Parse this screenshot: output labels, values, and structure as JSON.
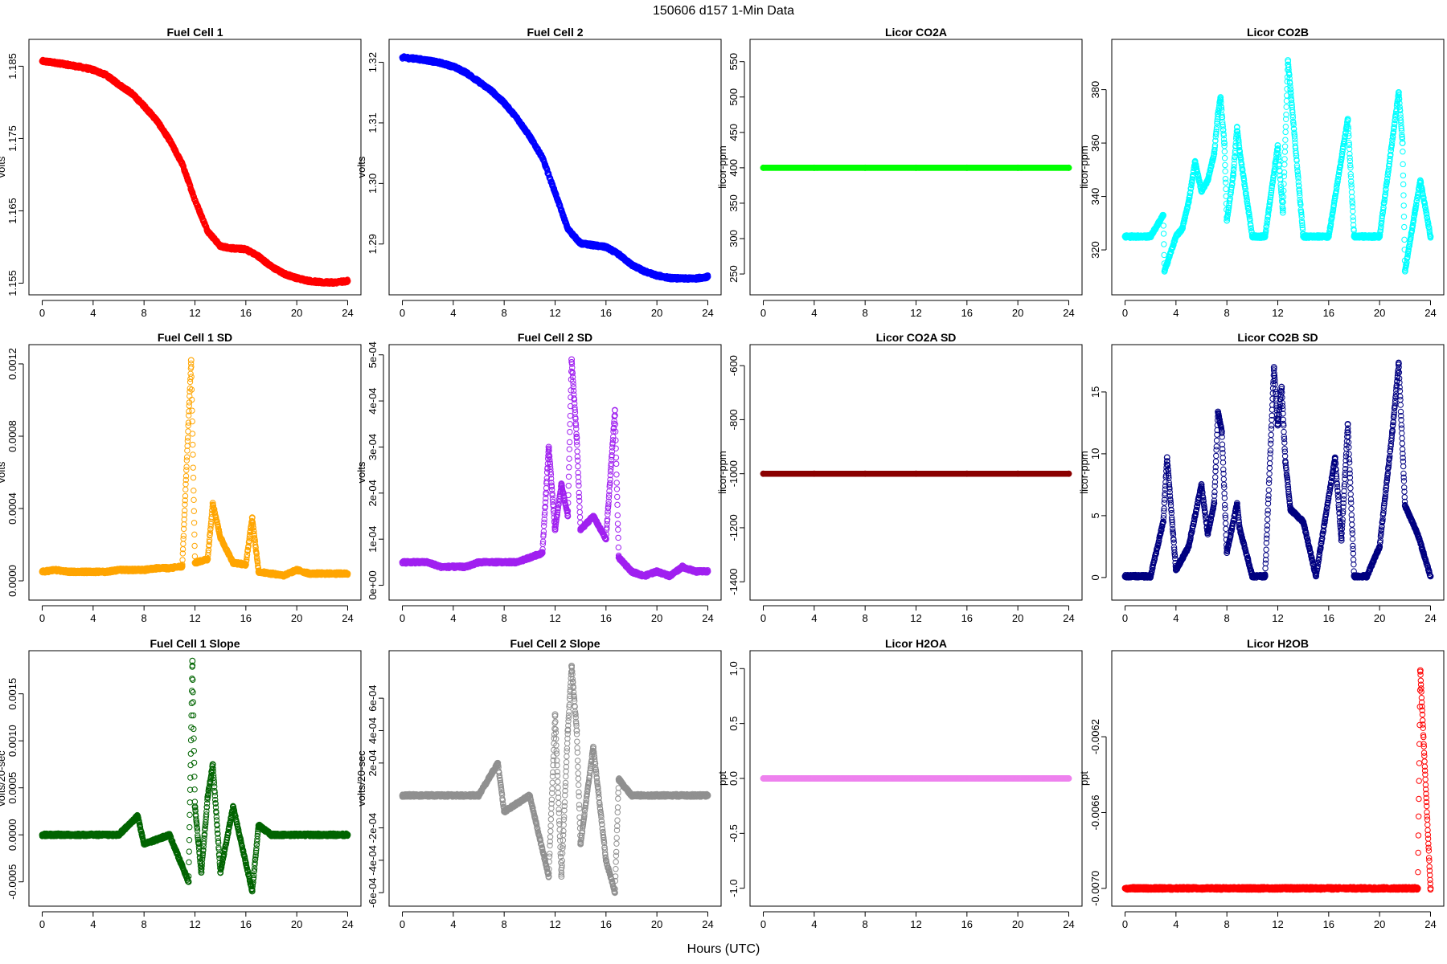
{
  "figure": {
    "title": "150606    d157    1-Min Data",
    "xlabel": "Hours (UTC)"
  },
  "chart_data": [
    {
      "type": "scatter",
      "title": "Fuel Cell 1",
      "ylabel": "volts",
      "xlim": [
        0,
        24
      ],
      "ylim": [
        1.1548,
        1.1873
      ],
      "xticks": [
        0,
        4,
        8,
        12,
        16,
        20,
        24
      ],
      "yticks": [
        1.155,
        1.165,
        1.175,
        1.185
      ],
      "ytick_labels": [
        "1.155",
        "1.165",
        "1.175",
        "1.185"
      ],
      "color": "#ff0000",
      "series": [
        {
          "x": [
            0,
            1,
            2,
            3,
            4,
            5,
            6,
            7,
            8,
            9,
            10,
            11,
            12,
            13,
            14,
            15,
            16,
            17,
            18,
            19,
            20,
            21,
            22,
            23,
            24
          ],
          "y": [
            1.1857,
            1.1855,
            1.1852,
            1.1849,
            1.1845,
            1.1838,
            1.1825,
            1.1813,
            1.1795,
            1.1775,
            1.1748,
            1.1715,
            1.1665,
            1.1622,
            1.1601,
            1.1598,
            1.1597,
            1.1587,
            1.1573,
            1.1563,
            1.1557,
            1.1553,
            1.1551,
            1.1551,
            1.1553
          ]
        }
      ]
    },
    {
      "type": "scatter",
      "title": "Fuel Cell 2",
      "ylabel": "volts",
      "xlim": [
        0,
        24
      ],
      "ylim": [
        1.2833,
        1.3221
      ],
      "xticks": [
        0,
        4,
        8,
        12,
        16,
        20,
        24
      ],
      "yticks": [
        1.29,
        1.3,
        1.31,
        1.32
      ],
      "ytick_labels": [
        "1.29",
        "1.30",
        "1.31",
        "1.32"
      ],
      "color": "#0000ff",
      "series": [
        {
          "x": [
            0,
            1,
            2,
            3,
            4,
            5,
            6,
            7,
            8,
            9,
            10,
            11,
            12,
            13,
            14,
            15,
            16,
            17,
            18,
            19,
            20,
            21,
            22,
            23,
            24
          ],
          "y": [
            1.3208,
            1.3206,
            1.3203,
            1.3199,
            1.3193,
            1.3183,
            1.3168,
            1.3153,
            1.3133,
            1.3108,
            1.3078,
            1.3043,
            1.2985,
            1.2925,
            1.2901,
            1.2898,
            1.2895,
            1.2883,
            1.2866,
            1.2855,
            1.2848,
            1.2844,
            1.2843,
            1.2843,
            1.2846
          ]
        }
      ]
    },
    {
      "type": "scatter",
      "title": "Licor CO2A",
      "ylabel": "licor-ppm",
      "xlim": [
        0,
        24
      ],
      "ylim": [
        235,
        567
      ],
      "xticks": [
        0,
        4,
        8,
        12,
        16,
        20,
        24
      ],
      "yticks": [
        250,
        300,
        350,
        400,
        450,
        500,
        550
      ],
      "ytick_labels": [
        "250",
        "300",
        "350",
        "400",
        "450",
        "500",
        "550"
      ],
      "color": "#00ff00",
      "series": [
        {
          "x": [
            0,
            4,
            8,
            12,
            16,
            20,
            24
          ],
          "y": [
            400,
            400,
            400,
            400,
            400,
            400,
            400
          ]
        }
      ]
    },
    {
      "type": "scatter",
      "title": "Licor CO2B",
      "ylabel": "licor-ppm",
      "xlim": [
        0,
        24
      ],
      "ylim": [
        307,
        395
      ],
      "xticks": [
        0,
        4,
        8,
        12,
        16,
        20,
        24
      ],
      "yticks": [
        320,
        340,
        360,
        380
      ],
      "ytick_labels": [
        "320",
        "340",
        "360",
        "380"
      ],
      "color": "#00ffff",
      "series": [
        {
          "x": [
            0.0,
            2.0,
            3.0,
            3.1,
            4.0,
            4.5,
            5.0,
            5.5,
            6.0,
            6.5,
            7.0,
            7.3,
            7.5,
            7.8,
            8.0,
            8.5,
            8.8,
            9.0,
            10.0,
            11.0,
            12.0,
            12.4,
            12.8,
            13.0,
            14.0,
            16.0,
            17.5,
            18.0,
            20.0,
            21.5,
            21.8,
            22.0,
            22.8,
            23.2,
            24.0
          ],
          "y": [
            325,
            325,
            333,
            312,
            325,
            328,
            338,
            353,
            342,
            346,
            356,
            371,
            377,
            360,
            331,
            348,
            366,
            357,
            325,
            325,
            359,
            334,
            391,
            380,
            325,
            325,
            369,
            325,
            325,
            379,
            360,
            312,
            335,
            346,
            325
          ]
        }
      ]
    },
    {
      "type": "scatter",
      "title": "Fuel Cell 1 SD",
      "ylabel": "volts",
      "xlim": [
        0,
        24
      ],
      "ylim": [
        -5e-05,
        0.00125
      ],
      "xticks": [
        0,
        4,
        8,
        12,
        16,
        20,
        24
      ],
      "yticks": [
        0.0,
        0.0004,
        0.0008,
        0.0012
      ],
      "ytick_labels": [
        "0.0000",
        "0.0004",
        "0.0008",
        "0.0012"
      ],
      "color": "#ffa500",
      "series": [
        {
          "x": [
            0,
            1,
            2,
            3,
            4,
            5,
            6,
            7,
            8,
            9,
            10,
            11,
            11.7,
            12,
            13,
            13.4,
            14,
            15,
            16,
            16.5,
            17,
            18,
            19,
            20,
            21,
            22,
            23,
            24
          ],
          "y": [
            5e-05,
            6e-05,
            5e-05,
            5e-05,
            5e-05,
            5e-05,
            6e-05,
            6e-05,
            6e-05,
            7e-05,
            7e-05,
            8e-05,
            0.00122,
            0.0001,
            0.00012,
            0.00043,
            0.00024,
            0.0001,
            9e-05,
            0.00035,
            5e-05,
            4e-05,
            3e-05,
            6e-05,
            4e-05,
            4e-05,
            4e-05,
            4e-05
          ]
        }
      ]
    },
    {
      "type": "scatter",
      "title": "Fuel Cell 2 SD",
      "ylabel": "volts",
      "xlim": [
        0,
        24
      ],
      "ylim": [
        -1e-05,
        0.0005
      ],
      "xticks": [
        0,
        4,
        8,
        12,
        16,
        20,
        24
      ],
      "yticks": [
        0.0,
        0.0001,
        0.0002,
        0.0003,
        0.0004,
        0.0005
      ],
      "ytick_labels": [
        "0e+00",
        "1e-04",
        "2e-04",
        "3e-04",
        "4e-04",
        "5e-04"
      ],
      "color": "#a020f0",
      "series": [
        {
          "x": [
            0,
            1,
            2,
            3,
            4,
            5,
            6,
            7,
            8,
            9,
            10,
            11,
            11.5,
            12,
            12.5,
            13,
            13.3,
            13.7,
            14,
            15,
            16,
            16.7,
            17,
            18,
            19,
            20,
            21,
            22,
            23,
            24
          ],
          "y": [
            5e-05,
            5e-05,
            5e-05,
            4e-05,
            4e-05,
            4e-05,
            5e-05,
            5e-05,
            5e-05,
            5e-05,
            6e-05,
            7e-05,
            0.0003,
            0.00012,
            0.00022,
            0.00015,
            0.00049,
            0.00032,
            0.00012,
            0.00015,
            0.0001,
            0.00038,
            6e-05,
            3e-05,
            2e-05,
            3e-05,
            2e-05,
            4e-05,
            3e-05,
            3e-05
          ]
        }
      ]
    },
    {
      "type": "scatter",
      "title": "Licor CO2A SD",
      "ylabel": "licor-ppm",
      "xlim": [
        0,
        24
      ],
      "ylim": [
        -1430,
        -560
      ],
      "xticks": [
        0,
        4,
        8,
        12,
        16,
        20,
        24
      ],
      "yticks": [
        -1400,
        -1200,
        -1000,
        -800,
        -600
      ],
      "ytick_labels": [
        "-1400",
        "-1200",
        "-1000",
        "-800",
        "-600"
      ],
      "color": "#8b0000",
      "series": [
        {
          "x": [
            0,
            4,
            8,
            12,
            16,
            20,
            24
          ],
          "y": [
            -1000,
            -1000,
            -1000,
            -1000,
            -1000,
            -1000,
            -1000
          ]
        }
      ]
    },
    {
      "type": "scatter",
      "title": "Licor CO2B SD",
      "ylabel": "licor-ppm",
      "xlim": [
        0,
        24
      ],
      "ylim": [
        -1,
        18
      ],
      "xticks": [
        0,
        4,
        8,
        12,
        16,
        20,
        24
      ],
      "yticks": [
        0,
        5,
        10,
        15
      ],
      "ytick_labels": [
        "0",
        "5",
        "10",
        "15"
      ],
      "color": "#000080",
      "series": [
        {
          "x": [
            0,
            2,
            3.0,
            3.3,
            4.0,
            5.0,
            5.5,
            6.0,
            6.5,
            7.0,
            7.3,
            7.6,
            8.0,
            8.8,
            9.0,
            10,
            11,
            11.7,
            12.0,
            12.3,
            12.6,
            13.0,
            14.0,
            15,
            16.5,
            17.0,
            17.5,
            18,
            19,
            20,
            21.0,
            21.5,
            22.0,
            23.0,
            24
          ],
          "y": [
            0.1,
            0.1,
            4.5,
            9.7,
            0.6,
            2.5,
            5.0,
            7.5,
            3.5,
            6.0,
            13.4,
            11.8,
            2.0,
            6.0,
            4.0,
            0.1,
            0.1,
            17.0,
            12.3,
            15.4,
            9.3,
            5.5,
            4.5,
            0.1,
            9.7,
            3.0,
            12.4,
            0.1,
            0.1,
            2.5,
            11.8,
            17.3,
            5.8,
            3.5,
            0.1
          ]
        }
      ]
    },
    {
      "type": "scatter",
      "title": "Fuel Cell 1 Slope",
      "ylabel": "volts/20-sec",
      "xlim": [
        0,
        24
      ],
      "ylim": [
        -0.00065,
        0.00185
      ],
      "xticks": [
        0,
        4,
        8,
        12,
        16,
        20,
        24
      ],
      "yticks": [
        -0.0005,
        0.0,
        0.0005,
        0.001,
        0.0015
      ],
      "ytick_labels": [
        "-0.0005",
        "0.0000",
        "0.0005",
        "0.0010",
        "0.0015"
      ],
      "color": "#006400",
      "series": [
        {
          "x": [
            0,
            2,
            4,
            6,
            7.5,
            8,
            10,
            11.5,
            11.8,
            12.0,
            12.5,
            13.0,
            13.4,
            14.0,
            15.0,
            16.0,
            16.5,
            17.0,
            18,
            20,
            22,
            24
          ],
          "y": [
            0.0,
            0.0,
            0.0,
            0.0,
            0.0002,
            -0.0001,
            0.0,
            -0.0005,
            0.00185,
            0.0003,
            -0.0004,
            0.0004,
            0.00075,
            -0.0004,
            0.0003,
            -0.0003,
            -0.0006,
            0.0001,
            0.0,
            0.0,
            0.0,
            0.0
          ]
        }
      ]
    },
    {
      "type": "scatter",
      "title": "Fuel Cell 2 Slope",
      "ylabel": "volts/20-sec",
      "xlim": [
        0,
        24
      ],
      "ylim": [
        -0.00062,
        0.00083
      ],
      "xticks": [
        0,
        4,
        8,
        12,
        16,
        20,
        24
      ],
      "yticks": [
        -0.0006,
        -0.0004,
        -0.0002,
        0.0002,
        0.0004,
        0.0006
      ],
      "ytick_labels": [
        "-6e-04",
        "-4e-04",
        "-2e-04",
        "2e-04",
        "4e-04",
        "6e-04"
      ],
      "color": "#909090",
      "series": [
        {
          "x": [
            0,
            2,
            4,
            6,
            7.5,
            8,
            10,
            11.5,
            12.0,
            12.5,
            13.0,
            13.3,
            13.7,
            14.0,
            15.0,
            16.0,
            16.7,
            17.0,
            18,
            20,
            22,
            24
          ],
          "y": [
            0.0,
            0.0,
            0.0,
            0.0,
            0.0002,
            -0.0001,
            0.0,
            -0.0005,
            0.0005,
            -0.0005,
            0.0004,
            0.0008,
            0.0004,
            -0.0003,
            0.0003,
            -0.0004,
            -0.0006,
            0.0001,
            0.0,
            0.0,
            0.0,
            0.0
          ]
        }
      ]
    },
    {
      "type": "scatter",
      "title": "Licor H2OA",
      "ylabel": "ppt",
      "xlim": [
        0,
        24
      ],
      "ylim": [
        -1.07,
        1.07
      ],
      "xticks": [
        0,
        4,
        8,
        12,
        16,
        20,
        24
      ],
      "yticks": [
        -1.0,
        -0.5,
        0.0,
        0.5,
        1.0
      ],
      "ytick_labels": [
        "-1.0",
        "-0.5",
        "0.0",
        "0.5",
        "1.0"
      ],
      "color": "#ee82ee",
      "series": [
        {
          "x": [
            0,
            4,
            8,
            12,
            16,
            20,
            24
          ],
          "y": [
            0,
            0,
            0,
            0,
            0,
            0,
            0
          ]
        }
      ]
    },
    {
      "type": "scatter",
      "title": "Licor H2OB",
      "ylabel": "ppt",
      "xlim": [
        0,
        24
      ],
      "ylim": [
        -0.00704,
        -0.0058
      ],
      "xticks": [
        0,
        4,
        8,
        12,
        16,
        20,
        24
      ],
      "yticks": [
        -0.007,
        -0.0066,
        -0.0062
      ],
      "ytick_labels": [
        "-0.0070",
        "-0.0066",
        "-0.0062"
      ],
      "color": "#ff0000",
      "series": [
        {
          "x": [
            0,
            4,
            8,
            12,
            16,
            20,
            23.0,
            23.2,
            24
          ],
          "y": [
            -0.007,
            -0.007,
            -0.007,
            -0.007,
            -0.007,
            -0.007,
            -0.007,
            -0.00585,
            -0.007
          ]
        }
      ]
    }
  ]
}
